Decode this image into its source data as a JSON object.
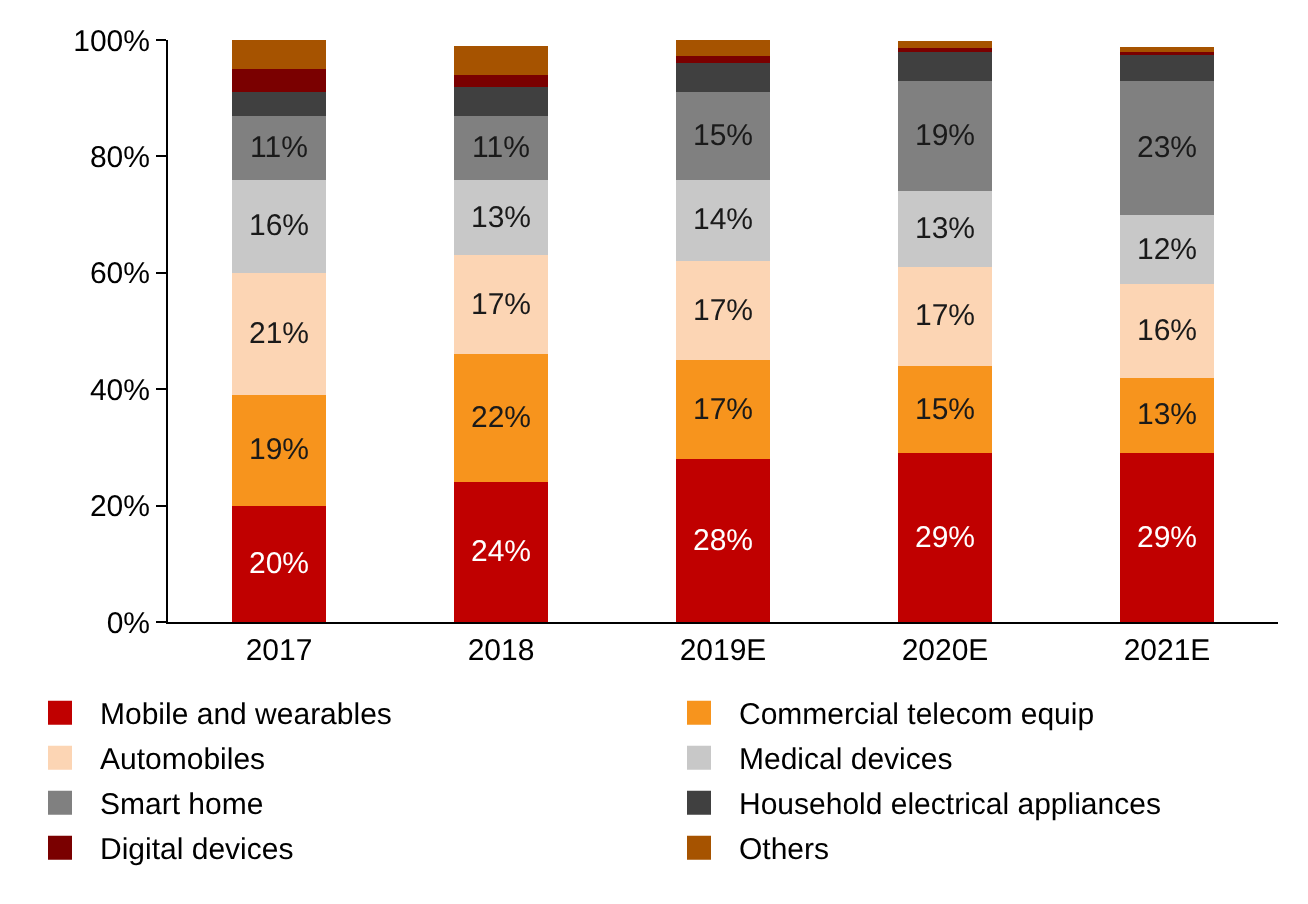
{
  "chart_data": {
    "type": "bar",
    "stacked": true,
    "categories": [
      "2017",
      "2018",
      "2019E",
      "2020E",
      "2021E"
    ],
    "series": [
      {
        "name": "Mobile and wearables",
        "color": "#c00000",
        "values": [
          20,
          24,
          28,
          29,
          29
        ],
        "value_labels": [
          "20%",
          "24%",
          "28%",
          "29%",
          "29%"
        ]
      },
      {
        "name": "Commercial telecom equip",
        "color": "#f7941d",
        "values": [
          19,
          22,
          17,
          15,
          13
        ],
        "value_labels": [
          "19%",
          "22%",
          "17%",
          "15%",
          "13%"
        ]
      },
      {
        "name": "Automobiles",
        "color": "#fcd5b4",
        "values": [
          21,
          17,
          17,
          17,
          16
        ],
        "value_labels": [
          "21%",
          "17%",
          "17%",
          "17%",
          "16%"
        ]
      },
      {
        "name": "Medical devices",
        "color": "#c8c8c8",
        "values": [
          16,
          13,
          14,
          13,
          12
        ],
        "value_labels": [
          "16%",
          "13%",
          "14%",
          "13%",
          "12%"
        ]
      },
      {
        "name": "Smart home",
        "color": "#808080",
        "values": [
          11,
          11,
          15,
          19,
          23
        ],
        "value_labels": [
          "11%",
          "11%",
          "15%",
          "19%",
          "23%"
        ]
      },
      {
        "name": "Household electrical appliances",
        "color": "#404040",
        "values": [
          4,
          5,
          5,
          5,
          4.5
        ]
      },
      {
        "name": "Digital devices",
        "color": "#7a0000",
        "values": [
          4,
          2,
          1.3,
          0.6,
          0.7
        ]
      },
      {
        "name": "Others",
        "color": "#a65300",
        "values": [
          5,
          5,
          2.7,
          1.3,
          0.6
        ]
      }
    ],
    "ylim": [
      0,
      100
    ],
    "yticks": [
      {
        "value": 0,
        "label": "0%"
      },
      {
        "value": 20,
        "label": "20%"
      },
      {
        "value": 40,
        "label": "40%"
      },
      {
        "value": 60,
        "label": "60%"
      },
      {
        "value": 80,
        "label": "80%"
      },
      {
        "value": 100,
        "label": "100%"
      }
    ],
    "legend": "bottom"
  }
}
